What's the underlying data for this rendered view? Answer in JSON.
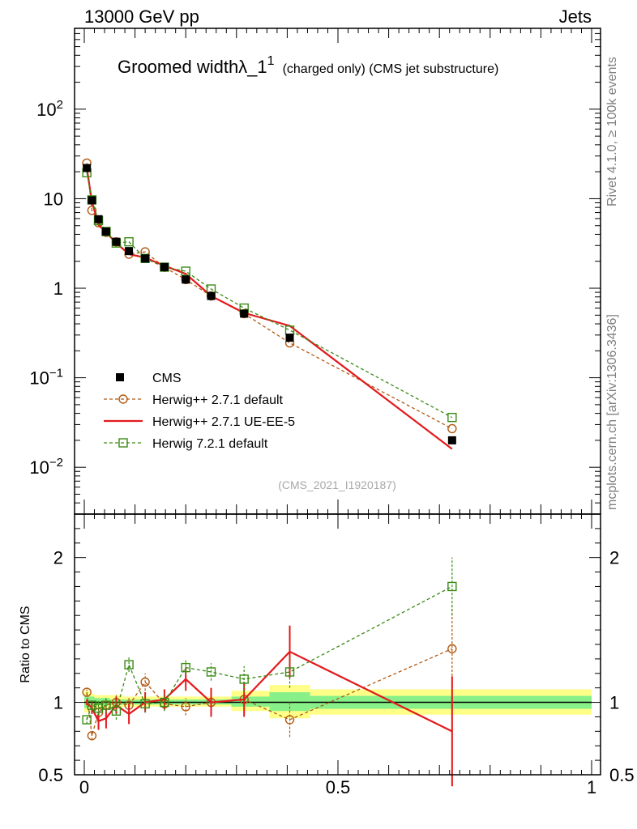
{
  "header": {
    "left": "13000 GeV pp",
    "right": "Jets"
  },
  "side_labels": {
    "top": "Rivet 4.1.0, ≥ 100k events",
    "bottom": "mcplots.cern.ch [arXiv:1306.3436]"
  },
  "chart_data": {
    "type": "line",
    "title": "Groomed widthλ_1",
    "title_superscript": "1",
    "subtitle": "(charged only) (CMS jet substructure)",
    "analysis_tag": "(CMS_2021_I1920187)",
    "xlim": [
      0,
      1
    ],
    "main_ylim": [
      0.003,
      800
    ],
    "main_yscale": "log",
    "main_yticks": [
      {
        "v": 0.01,
        "base": "10",
        "exp": "−2"
      },
      {
        "v": 0.1,
        "base": "10",
        "exp": "−1"
      },
      {
        "v": 1,
        "label": "1"
      },
      {
        "v": 10,
        "label": "10"
      },
      {
        "v": 100,
        "base": "10",
        "exp": "2"
      }
    ],
    "ratio_ylabel": "Ratio to CMS",
    "ratio_ylim": [
      0.5,
      2.3
    ],
    "ratio_ytick_labels": [
      {
        "v": 0.5,
        "label": "0.5"
      },
      {
        "v": 1,
        "label": "1"
      },
      {
        "v": 2,
        "label": "2"
      }
    ],
    "xtick_labels": [
      {
        "v": 0,
        "label": "0"
      },
      {
        "v": 0.5,
        "label": "0.5"
      },
      {
        "v": 1,
        "label": "1"
      }
    ],
    "data": {
      "name": "CMS",
      "color": "#000000",
      "x": [
        0.005,
        0.015,
        0.028,
        0.043,
        0.063,
        0.088,
        0.12,
        0.158,
        0.2,
        0.25,
        0.315,
        0.405,
        0.725
      ],
      "y": [
        22.0,
        9.6,
        5.9,
        4.3,
        3.3,
        2.6,
        2.15,
        1.72,
        1.25,
        0.82,
        0.52,
        0.28,
        0.02
      ],
      "bands": [
        {
          "x0": 0.0,
          "x1": 0.01,
          "y_lo": 0.93,
          "y_hi": 1.08,
          "g_lo": 0.96,
          "g_hi": 1.05
        },
        {
          "x0": 0.01,
          "x1": 0.02,
          "y_lo": 0.95,
          "y_hi": 1.06,
          "g_lo": 0.97,
          "g_hi": 1.04
        },
        {
          "x0": 0.02,
          "x1": 0.035,
          "y_lo": 0.96,
          "y_hi": 1.05,
          "g_lo": 0.98,
          "g_hi": 1.03
        },
        {
          "x0": 0.035,
          "x1": 0.05,
          "y_lo": 0.96,
          "y_hi": 1.05,
          "g_lo": 0.98,
          "g_hi": 1.03
        },
        {
          "x0": 0.05,
          "x1": 0.075,
          "y_lo": 0.96,
          "y_hi": 1.05,
          "g_lo": 0.98,
          "g_hi": 1.02
        },
        {
          "x0": 0.075,
          "x1": 0.1,
          "y_lo": 0.97,
          "y_hi": 1.04,
          "g_lo": 0.985,
          "g_hi": 1.02
        },
        {
          "x0": 0.1,
          "x1": 0.14,
          "y_lo": 0.97,
          "y_hi": 1.04,
          "g_lo": 0.985,
          "g_hi": 1.02
        },
        {
          "x0": 0.14,
          "x1": 0.18,
          "y_lo": 0.97,
          "y_hi": 1.04,
          "g_lo": 0.985,
          "g_hi": 1.02
        },
        {
          "x0": 0.18,
          "x1": 0.225,
          "y_lo": 0.97,
          "y_hi": 1.04,
          "g_lo": 0.985,
          "g_hi": 1.02
        },
        {
          "x0": 0.225,
          "x1": 0.29,
          "y_lo": 0.97,
          "y_hi": 1.04,
          "g_lo": 0.985,
          "g_hi": 1.02
        },
        {
          "x0": 0.29,
          "x1": 0.365,
          "y_lo": 0.94,
          "y_hi": 1.08,
          "g_lo": 0.97,
          "g_hi": 1.04
        },
        {
          "x0": 0.365,
          "x1": 0.445,
          "y_lo": 0.89,
          "y_hi": 1.12,
          "g_lo": 0.94,
          "g_hi": 1.07
        },
        {
          "x0": 0.445,
          "x1": 1.0,
          "y_lo": 0.915,
          "y_hi": 1.09,
          "g_lo": 0.955,
          "g_hi": 1.045
        }
      ]
    },
    "series": [
      {
        "name": "Herwig++ 2.7.1 default",
        "color": "#b15912",
        "style": "dashed",
        "marker": "circle",
        "y": [
          25.0,
          7.4,
          5.4,
          4.2,
          3.3,
          2.4,
          2.55,
          1.71,
          1.25,
          0.82,
          0.52,
          0.245,
          0.027
        ],
        "ratio": [
          1.07,
          0.77,
          0.93,
          0.98,
          1.0,
          0.98,
          1.14,
          0.99,
          0.97,
          1.0,
          1.02,
          0.88,
          1.37
        ],
        "ratio_err": [
          0.02,
          0.03,
          0.04,
          0.04,
          0.05,
          0.05,
          0.06,
          0.05,
          0.06,
          0.07,
          0.09,
          0.12,
          0.3
        ]
      },
      {
        "name": "Herwig++ 2.7.1 UE-EE-5",
        "color": "#e31a1c",
        "style": "solid",
        "marker": "none",
        "y": [
          22.0,
          9.3,
          5.1,
          4.2,
          3.2,
          2.4,
          2.2,
          1.78,
          1.45,
          0.82,
          0.53,
          0.38,
          0.016
        ],
        "ratio": [
          1.0,
          0.96,
          0.87,
          0.89,
          0.98,
          0.92,
          1.0,
          1.02,
          1.16,
          1.0,
          1.02,
          1.35,
          0.8
        ],
        "ratio_err": [
          0.02,
          0.04,
          0.06,
          0.07,
          0.06,
          0.07,
          0.07,
          0.07,
          0.08,
          0.1,
          0.12,
          0.18,
          0.38
        ]
      },
      {
        "name": "Herwig 7.2.1 default",
        "color": "#3a8a14",
        "style": "dashed",
        "marker": "square",
        "y": [
          19.5,
          9.7,
          5.7,
          4.3,
          3.2,
          3.3,
          2.15,
          1.72,
          1.55,
          0.98,
          0.6,
          0.34,
          0.036
        ],
        "ratio": [
          0.88,
          0.98,
          0.96,
          0.98,
          0.94,
          1.26,
          0.99,
          1.0,
          1.24,
          1.21,
          1.16,
          1.21,
          1.8
        ],
        "ratio_err": [
          0.03,
          0.04,
          0.05,
          0.05,
          0.06,
          0.05,
          0.06,
          0.06,
          0.05,
          0.06,
          0.09,
          0.11,
          0.2
        ]
      }
    ]
  }
}
